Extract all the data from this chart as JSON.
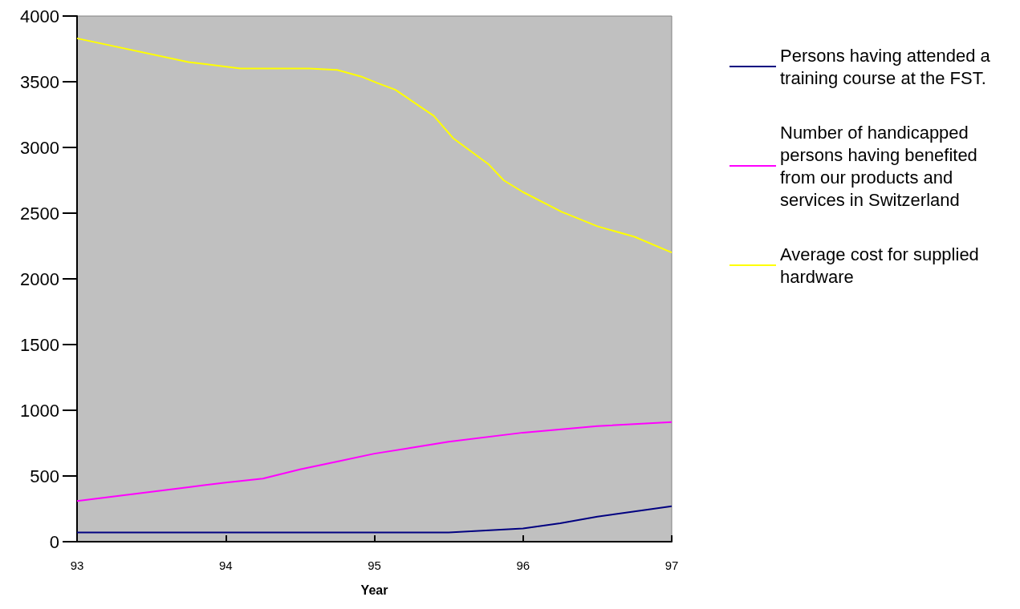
{
  "chart_data": {
    "type": "line",
    "xlabel": "Year",
    "xlim": [
      93,
      97
    ],
    "xticks": [
      93,
      94,
      95,
      96,
      97
    ],
    "ylim": [
      0,
      4000
    ],
    "yticks": [
      0,
      500,
      1000,
      1500,
      2000,
      2500,
      3000,
      3500,
      4000
    ],
    "grid": false,
    "legend": "right",
    "marker": "none",
    "line_style": "solid",
    "series": [
      {
        "name": "Persons having attended a training course at the FST.",
        "color": "#000080",
        "x": [
          93,
          94,
          95,
          95.5,
          96,
          96.25,
          96.5,
          96.75,
          97
        ],
        "values": [
          70,
          70,
          70,
          70,
          100,
          140,
          190,
          230,
          270
        ]
      },
      {
        "name": "Number of handicapped persons having benefited from our products and services in Switzerland",
        "color": "#ff00ff",
        "x": [
          93,
          93.5,
          93.75,
          94,
          94.25,
          94.5,
          94.75,
          95,
          95.25,
          95.5,
          96,
          96.5,
          97
        ],
        "values": [
          310,
          380,
          415,
          450,
          480,
          550,
          610,
          670,
          715,
          760,
          830,
          880,
          910
        ]
      },
      {
        "name": "Average cost for supplied hardware",
        "color": "#ffff00",
        "x": [
          93,
          93.75,
          94.1,
          94.56,
          94.75,
          94.91,
          95.02,
          95.14,
          95.4,
          95.53,
          95.77,
          95.87,
          96,
          96.26,
          96.5,
          96.75,
          97
        ],
        "values": [
          3830,
          3650,
          3600,
          3600,
          3590,
          3540,
          3490,
          3440,
          3240,
          3070,
          2870,
          2750,
          2660,
          2510,
          2400,
          2320,
          2200
        ]
      }
    ]
  }
}
